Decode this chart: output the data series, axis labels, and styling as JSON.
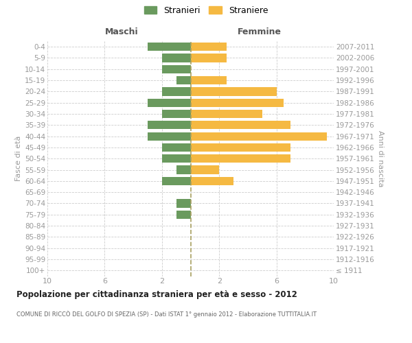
{
  "age_groups": [
    "100+",
    "95-99",
    "90-94",
    "85-89",
    "80-84",
    "75-79",
    "70-74",
    "65-69",
    "60-64",
    "55-59",
    "50-54",
    "45-49",
    "40-44",
    "35-39",
    "30-34",
    "25-29",
    "20-24",
    "15-19",
    "10-14",
    "5-9",
    "0-4"
  ],
  "birth_years": [
    "≤ 1911",
    "1912-1916",
    "1917-1921",
    "1922-1926",
    "1927-1931",
    "1932-1936",
    "1937-1941",
    "1942-1946",
    "1947-1951",
    "1952-1956",
    "1957-1961",
    "1962-1966",
    "1967-1971",
    "1972-1976",
    "1977-1981",
    "1982-1986",
    "1987-1991",
    "1992-1996",
    "1997-2001",
    "2002-2006",
    "2007-2011"
  ],
  "maschi": [
    0,
    0,
    0,
    0,
    0,
    1,
    1,
    0,
    2,
    1,
    2,
    2,
    3,
    3,
    2,
    3,
    2,
    1,
    2,
    2,
    3
  ],
  "femmine": [
    0,
    0,
    0,
    0,
    0,
    0,
    0,
    0,
    3,
    2,
    7,
    7,
    9.5,
    7,
    5,
    6.5,
    6,
    2.5,
    0,
    2.5,
    2.5
  ],
  "color_maschi": "#6a9a5e",
  "color_femmine": "#f5b942",
  "title": "Popolazione per cittadinanza straniera per età e sesso - 2012",
  "subtitle": "COMUNE DI RICCÒ DEL GOLFO DI SPEZIA (SP) - Dati ISTAT 1° gennaio 2012 - Elaborazione TUTTITALIA.IT",
  "ylabel_left": "Fasce di età",
  "ylabel_right": "Anni di nascita",
  "header_maschi": "Maschi",
  "header_femmine": "Femmine",
  "legend_maschi": "Stranieri",
  "legend_femmine": "Straniere",
  "xlim": 10,
  "background_color": "#ffffff",
  "grid_color": "#cccccc",
  "dashed_line_color": "#a8a060"
}
